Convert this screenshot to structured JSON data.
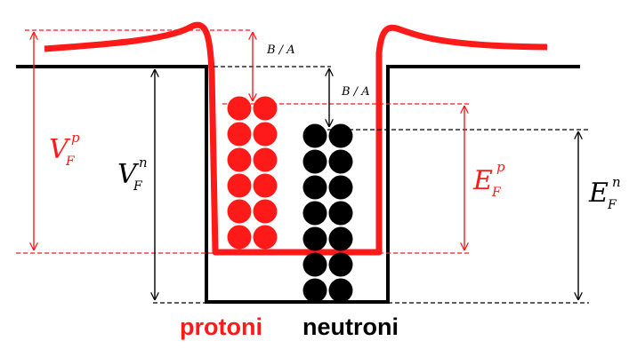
{
  "colors": {
    "proton": "#ff1a1a",
    "neutron": "#000000",
    "background": "#ffffff"
  },
  "labels": {
    "vfp": {
      "main": "V",
      "sub": "F",
      "sup": "p"
    },
    "vfn": {
      "main": "V",
      "sub": "F",
      "sup": "n"
    },
    "efp": {
      "main": "E",
      "sub": "F",
      "sup": "p"
    },
    "efn": {
      "main": "E",
      "sub": "F",
      "sup": "n"
    },
    "ba_proton": "B / A",
    "ba_neutron": "B / A"
  },
  "captions": {
    "protons": "protoni",
    "neutrons": "neutroni"
  },
  "levels": {
    "proton_columns": 2,
    "proton_rows": 6,
    "neutron_columns": 2,
    "neutron_rows": 7
  }
}
